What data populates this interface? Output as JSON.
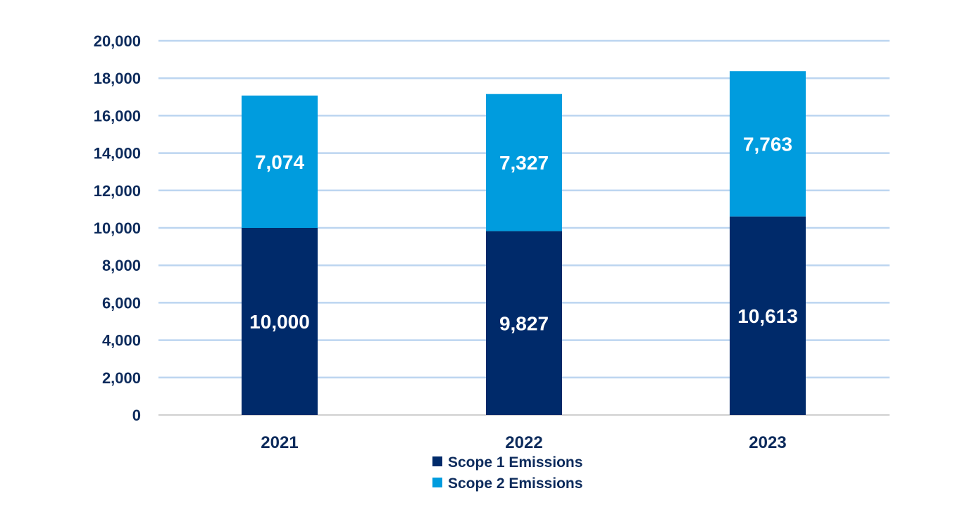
{
  "chart_data": {
    "type": "bar",
    "stacked": true,
    "title": "",
    "xlabel": "",
    "ylabel": "",
    "categories": [
      "2021",
      "2022",
      "2023"
    ],
    "series": [
      {
        "name": "Scope 1 Emissions",
        "values": [
          10000,
          9827,
          10613
        ],
        "labels": [
          "10,000",
          "9,827",
          "10,613"
        ],
        "color": "#002a6a"
      },
      {
        "name": "Scope 2 Emissions",
        "values": [
          7074,
          7327,
          7763
        ],
        "labels": [
          "7,074",
          "7,327",
          "7,763"
        ],
        "color": "#009cde"
      }
    ],
    "ylim": [
      0,
      20000
    ],
    "yticks": [
      {
        "value": 0,
        "label": "0"
      },
      {
        "value": 2000,
        "label": "2,000"
      },
      {
        "value": 4000,
        "label": "4,000"
      },
      {
        "value": 6000,
        "label": "6,000"
      },
      {
        "value": 8000,
        "label": "8,000"
      },
      {
        "value": 10000,
        "label": "10,000"
      },
      {
        "value": 12000,
        "label": "12,000"
      },
      {
        "value": 14000,
        "label": "14,000"
      },
      {
        "value": 16000,
        "label": "16,000"
      },
      {
        "value": 18000,
        "label": "18,000"
      },
      {
        "value": 20000,
        "label": "20,000"
      }
    ],
    "grid": true,
    "legend_position": "bottom",
    "colors": {
      "grid": "#bcd5f0",
      "text": "#0d2b5c",
      "data_label": "#ffffff"
    }
  }
}
